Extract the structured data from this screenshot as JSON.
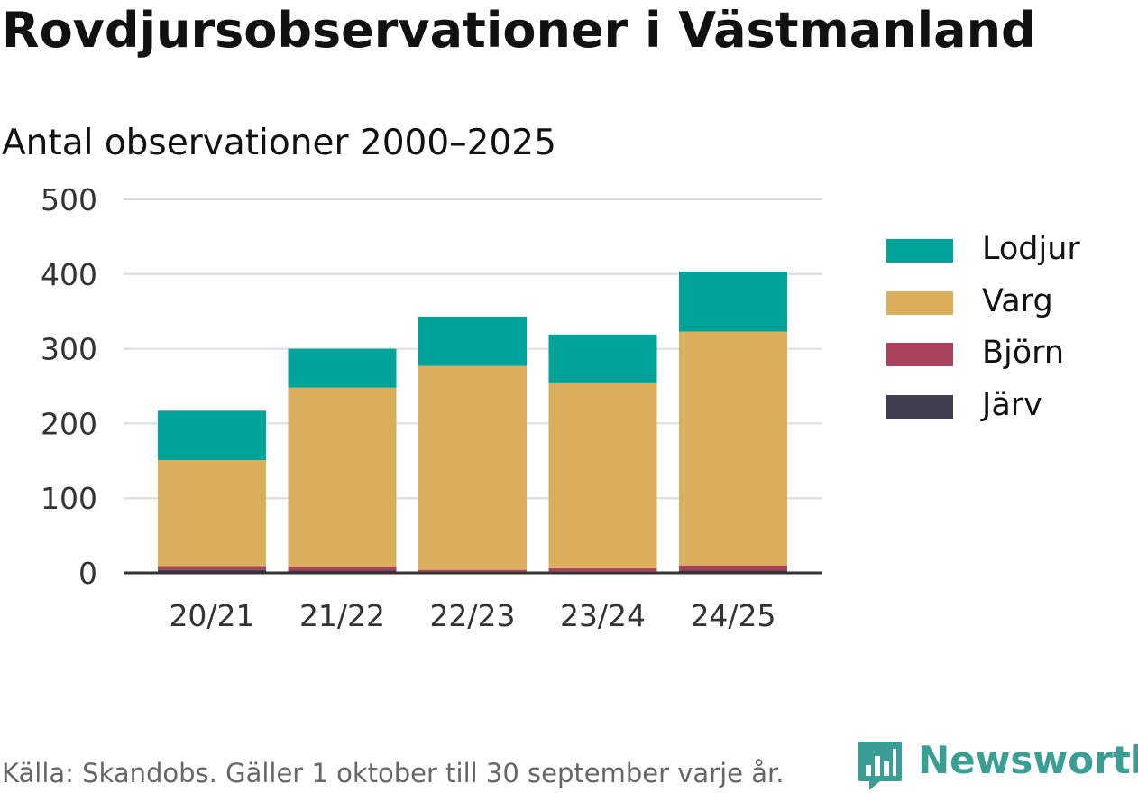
{
  "title": "Rovdjursobservationer i Västmanland",
  "subtitle": "Antal observationer 2000–2025",
  "source": "Källa: Skandobs. Gäller 1 oktober till 30 september varje år.",
  "brand": {
    "name": "Newsworthy",
    "icon": "newsworthy-logo-icon",
    "color": "#3a9e94"
  },
  "chart_data": {
    "type": "bar",
    "stacked": true,
    "categories": [
      "20/21",
      "21/22",
      "22/23",
      "23/24",
      "24/25"
    ],
    "series": [
      {
        "name": "Järv",
        "color": "#3f3f4e",
        "values": [
          4,
          3,
          2,
          2,
          3
        ]
      },
      {
        "name": "Björn",
        "color": "#a8425c",
        "values": [
          5,
          5,
          2,
          4,
          7
        ]
      },
      {
        "name": "Varg",
        "color": "#d9ae5c",
        "values": [
          142,
          240,
          273,
          249,
          313
        ]
      },
      {
        "name": "Lodjur",
        "color": "#00a39a",
        "values": [
          66,
          52,
          66,
          64,
          80
        ]
      }
    ],
    "legend_order": [
      "Lodjur",
      "Varg",
      "Björn",
      "Järv"
    ],
    "ylim": [
      0,
      500
    ],
    "yticks": [
      "0",
      "100",
      "200",
      "300",
      "400",
      "500"
    ],
    "grid": true,
    "legend_position": "right",
    "xlabel": "",
    "ylabel": ""
  }
}
